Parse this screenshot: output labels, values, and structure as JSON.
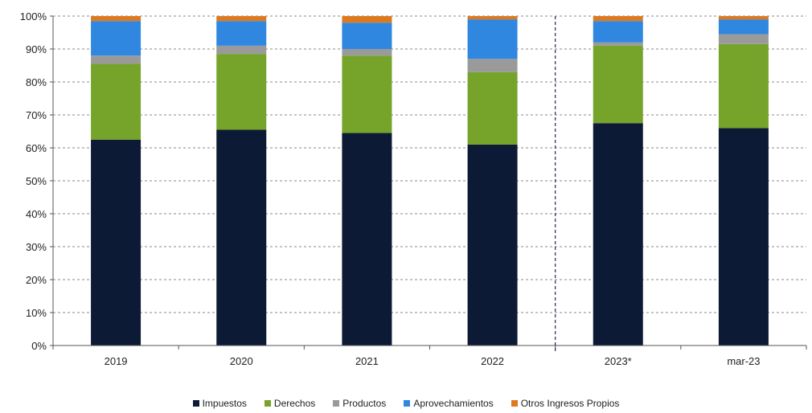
{
  "chart_data": {
    "type": "bar",
    "stacked": true,
    "categories": [
      "2019",
      "2020",
      "2021",
      "2022",
      "2023*",
      "mar-23"
    ],
    "y_ticks": [
      "0%",
      "10%",
      "20%",
      "30%",
      "40%",
      "50%",
      "60%",
      "70%",
      "80%",
      "90%",
      "100%"
    ],
    "ylim": [
      0,
      100
    ],
    "grid": true,
    "separator_after_category": "2022",
    "legend_position": "bottom",
    "series": [
      {
        "name": "Impuestos",
        "color": "#0d1a35",
        "values": [
          62.5,
          65.5,
          64.5,
          61.0,
          67.5,
          66.0
        ]
      },
      {
        "name": "Derechos",
        "color": "#76a32a",
        "values": [
          23.0,
          23.0,
          23.5,
          22.0,
          23.5,
          25.5
        ]
      },
      {
        "name": "Productos",
        "color": "#9a9a9a",
        "values": [
          2.5,
          2.5,
          2.0,
          4.0,
          1.0,
          3.0
        ]
      },
      {
        "name": "Aprovechamientos",
        "color": "#2f87e0",
        "values": [
          10.5,
          7.5,
          8.0,
          12.0,
          6.5,
          4.5
        ]
      },
      {
        "name": "Otros Ingresos Propios",
        "color": "#dd7a1f",
        "values": [
          1.5,
          1.5,
          2.0,
          1.0,
          1.5,
          1.0
        ]
      }
    ]
  }
}
